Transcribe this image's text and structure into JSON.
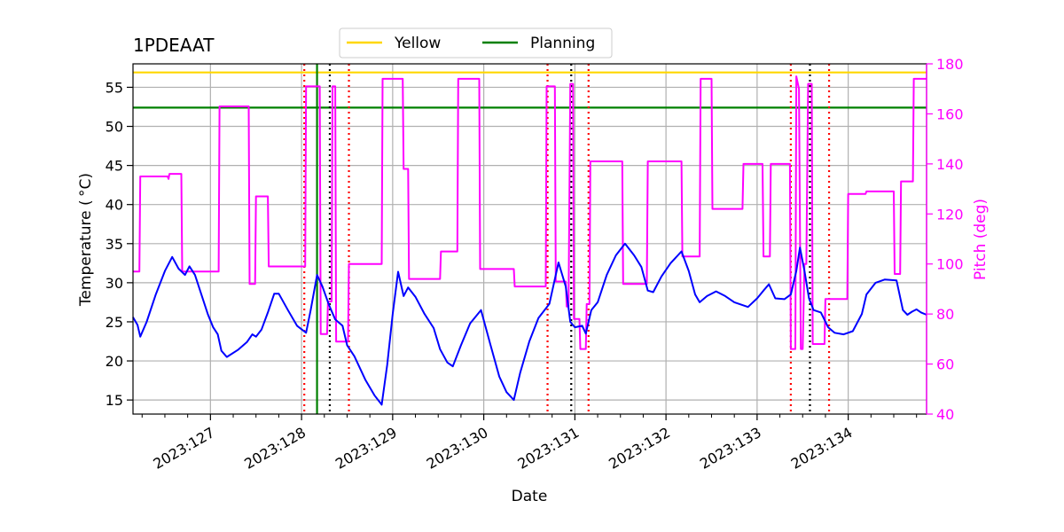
{
  "chart_data": {
    "type": "line",
    "title": "1PDEAAT",
    "xlabel": "Date",
    "ylabel": "Temperature ($^\\circ$C)",
    "ylabel_display": "Temperature ( °C)",
    "y2label": "Pitch (deg)",
    "xlim": [
      126.15,
      134.86
    ],
    "ylim": [
      13.2,
      58.0
    ],
    "y2lim": [
      40,
      180
    ],
    "grid": true,
    "legend_position": "top-center",
    "x_ticks": [
      {
        "value": 127,
        "label": "2023:127"
      },
      {
        "value": 128,
        "label": "2023:128"
      },
      {
        "value": 129,
        "label": "2023:129"
      },
      {
        "value": 130,
        "label": "2023:130"
      },
      {
        "value": 131,
        "label": "2023:131"
      },
      {
        "value": 132,
        "label": "2023:132"
      },
      {
        "value": 133,
        "label": "2023:133"
      },
      {
        "value": 134,
        "label": "2023:134"
      }
    ],
    "x_minor_step": 0.25,
    "y_ticks": [
      15,
      20,
      25,
      30,
      35,
      40,
      45,
      50,
      55
    ],
    "y2_ticks": [
      40,
      60,
      80,
      100,
      120,
      140,
      160,
      180
    ],
    "legend": [
      {
        "name": "Yellow",
        "color": "#ffd700"
      },
      {
        "name": "Planning",
        "color": "#008000"
      }
    ],
    "thresholds": [
      {
        "name": "yellow-limit",
        "y": 56.9,
        "color": "#ffd700"
      },
      {
        "name": "planning-limit",
        "y": 52.4,
        "color": "#008000"
      }
    ],
    "planning_marker_x": 128.17,
    "red_dotted_x": [
      128.03,
      128.52,
      130.7,
      131.15,
      133.37,
      133.79
    ],
    "black_dotted_x": [
      128.31,
      130.96,
      133.58
    ],
    "temperature": {
      "name": "Temperature",
      "color": "#0000ff",
      "points": [
        [
          126.15,
          25.6
        ],
        [
          126.2,
          24.6
        ],
        [
          126.23,
          23.1
        ],
        [
          126.3,
          25.0
        ],
        [
          126.4,
          28.5
        ],
        [
          126.5,
          31.5
        ],
        [
          126.58,
          33.3
        ],
        [
          126.65,
          31.8
        ],
        [
          126.72,
          31.0
        ],
        [
          126.77,
          32.1
        ],
        [
          126.83,
          31.0
        ],
        [
          126.9,
          28.5
        ],
        [
          126.97,
          26.0
        ],
        [
          127.03,
          24.3
        ],
        [
          127.08,
          23.4
        ],
        [
          127.12,
          21.3
        ],
        [
          127.18,
          20.5
        ],
        [
          127.3,
          21.4
        ],
        [
          127.4,
          22.4
        ],
        [
          127.46,
          23.4
        ],
        [
          127.5,
          23.1
        ],
        [
          127.56,
          24.0
        ],
        [
          127.63,
          26.2
        ],
        [
          127.7,
          28.6
        ],
        [
          127.75,
          28.6
        ],
        [
          127.85,
          26.5
        ],
        [
          127.95,
          24.5
        ],
        [
          128.05,
          23.6
        ],
        [
          128.1,
          26.5
        ],
        [
          128.17,
          31.0
        ],
        [
          128.23,
          29.5
        ],
        [
          128.3,
          27.2
        ],
        [
          128.37,
          25.3
        ],
        [
          128.45,
          24.5
        ],
        [
          128.5,
          22.0
        ],
        [
          128.58,
          20.6
        ],
        [
          128.7,
          17.6
        ],
        [
          128.8,
          15.6
        ],
        [
          128.88,
          14.4
        ],
        [
          128.94,
          19.5
        ],
        [
          129.0,
          26.0
        ],
        [
          129.06,
          31.4
        ],
        [
          129.12,
          28.3
        ],
        [
          129.17,
          29.4
        ],
        [
          129.25,
          28.2
        ],
        [
          129.35,
          26.0
        ],
        [
          129.45,
          24.2
        ],
        [
          129.52,
          21.5
        ],
        [
          129.6,
          19.8
        ],
        [
          129.66,
          19.3
        ],
        [
          129.75,
          22.0
        ],
        [
          129.85,
          24.8
        ],
        [
          129.97,
          26.5
        ],
        [
          130.07,
          22.2
        ],
        [
          130.17,
          18.0
        ],
        [
          130.25,
          16.0
        ],
        [
          130.33,
          15.0
        ],
        [
          130.4,
          18.5
        ],
        [
          130.5,
          22.5
        ],
        [
          130.6,
          25.5
        ],
        [
          130.72,
          27.3
        ],
        [
          130.8,
          31.5
        ],
        [
          130.82,
          32.6
        ],
        [
          130.9,
          29.5
        ],
        [
          130.95,
          25.0
        ],
        [
          131.0,
          24.3
        ],
        [
          131.08,
          24.5
        ],
        [
          131.12,
          23.5
        ],
        [
          131.18,
          26.5
        ],
        [
          131.25,
          27.5
        ],
        [
          131.35,
          31.0
        ],
        [
          131.45,
          33.5
        ],
        [
          131.55,
          35.0
        ],
        [
          131.65,
          33.5
        ],
        [
          131.73,
          32.0
        ],
        [
          131.8,
          29.0
        ],
        [
          131.86,
          28.8
        ],
        [
          131.95,
          30.8
        ],
        [
          132.05,
          32.5
        ],
        [
          132.17,
          34.0
        ],
        [
          132.25,
          31.5
        ],
        [
          132.32,
          28.5
        ],
        [
          132.37,
          27.5
        ],
        [
          132.45,
          28.3
        ],
        [
          132.55,
          28.9
        ],
        [
          132.65,
          28.3
        ],
        [
          132.75,
          27.5
        ],
        [
          132.9,
          26.9
        ],
        [
          133.0,
          28.0
        ],
        [
          133.07,
          29.0
        ],
        [
          133.13,
          29.8
        ],
        [
          133.2,
          28.0
        ],
        [
          133.3,
          27.9
        ],
        [
          133.37,
          28.5
        ],
        [
          133.43,
          31.5
        ],
        [
          133.47,
          34.5
        ],
        [
          133.52,
          31.5
        ],
        [
          133.57,
          28.0
        ],
        [
          133.62,
          26.5
        ],
        [
          133.7,
          26.2
        ],
        [
          133.78,
          24.3
        ],
        [
          133.85,
          23.6
        ],
        [
          133.95,
          23.4
        ],
        [
          134.05,
          23.8
        ],
        [
          134.15,
          26.0
        ],
        [
          134.2,
          28.5
        ],
        [
          134.3,
          30.0
        ],
        [
          134.4,
          30.4
        ],
        [
          134.53,
          30.3
        ],
        [
          134.6,
          26.5
        ],
        [
          134.65,
          25.9
        ],
        [
          134.7,
          26.3
        ],
        [
          134.75,
          26.6
        ],
        [
          134.8,
          26.2
        ],
        [
          134.86,
          25.9
        ]
      ]
    },
    "pitch": {
      "name": "Pitch",
      "color": "#ff00ff",
      "points": [
        [
          126.15,
          97
        ],
        [
          126.22,
          97
        ],
        [
          126.23,
          135
        ],
        [
          126.53,
          135
        ],
        [
          126.54,
          134
        ],
        [
          126.55,
          136
        ],
        [
          126.68,
          136
        ],
        [
          126.69,
          97
        ],
        [
          127.09,
          97
        ],
        [
          127.1,
          163
        ],
        [
          127.42,
          163
        ],
        [
          127.43,
          92
        ],
        [
          127.49,
          92
        ],
        [
          127.5,
          127
        ],
        [
          127.63,
          127
        ],
        [
          127.64,
          99
        ],
        [
          128.04,
          99
        ],
        [
          128.05,
          171
        ],
        [
          128.2,
          171
        ],
        [
          128.21,
          72
        ],
        [
          128.28,
          72
        ],
        [
          128.29,
          85
        ],
        [
          128.33,
          85
        ],
        [
          128.34,
          171
        ],
        [
          128.37,
          171
        ],
        [
          128.38,
          69
        ],
        [
          128.51,
          69
        ],
        [
          128.52,
          100
        ],
        [
          128.88,
          100
        ],
        [
          128.89,
          174
        ],
        [
          129.11,
          174
        ],
        [
          129.12,
          138
        ],
        [
          129.17,
          138
        ],
        [
          129.18,
          94
        ],
        [
          129.52,
          94
        ],
        [
          129.53,
          105
        ],
        [
          129.71,
          105
        ],
        [
          129.72,
          174
        ],
        [
          129.95,
          174
        ],
        [
          129.96,
          98
        ],
        [
          130.33,
          98
        ],
        [
          130.34,
          91
        ],
        [
          130.68,
          91
        ],
        [
          130.69,
          171
        ],
        [
          130.78,
          171
        ],
        [
          130.79,
          93
        ],
        [
          130.9,
          93
        ],
        [
          130.91,
          83
        ],
        [
          130.93,
          83
        ],
        [
          130.95,
          172
        ],
        [
          130.98,
          172
        ],
        [
          130.99,
          78
        ],
        [
          131.05,
          78
        ],
        [
          131.06,
          66
        ],
        [
          131.12,
          66
        ],
        [
          131.13,
          84
        ],
        [
          131.16,
          84
        ],
        [
          131.17,
          141
        ],
        [
          131.52,
          141
        ],
        [
          131.53,
          92
        ],
        [
          131.79,
          92
        ],
        [
          131.8,
          141
        ],
        [
          132.17,
          141
        ],
        [
          132.18,
          103
        ],
        [
          132.37,
          103
        ],
        [
          132.38,
          174
        ],
        [
          132.5,
          174
        ],
        [
          132.51,
          122
        ],
        [
          132.84,
          122
        ],
        [
          132.85,
          140
        ],
        [
          133.06,
          140
        ],
        [
          133.07,
          103
        ],
        [
          133.14,
          103
        ],
        [
          133.15,
          140
        ],
        [
          133.36,
          140
        ],
        [
          133.37,
          66
        ],
        [
          133.42,
          66
        ],
        [
          133.43,
          175
        ],
        [
          133.46,
          170
        ],
        [
          133.48,
          66
        ],
        [
          133.5,
          66
        ],
        [
          133.52,
          100
        ],
        [
          133.54,
          100
        ],
        [
          133.56,
          172
        ],
        [
          133.6,
          172
        ],
        [
          133.61,
          68
        ],
        [
          133.74,
          68
        ],
        [
          133.75,
          86
        ],
        [
          133.99,
          86
        ],
        [
          134.0,
          128
        ],
        [
          134.19,
          128
        ],
        [
          134.2,
          129
        ],
        [
          134.5,
          129
        ],
        [
          134.51,
          96
        ],
        [
          134.57,
          96
        ],
        [
          134.58,
          133
        ],
        [
          134.71,
          133
        ],
        [
          134.72,
          174
        ],
        [
          134.86,
          174
        ]
      ]
    }
  }
}
